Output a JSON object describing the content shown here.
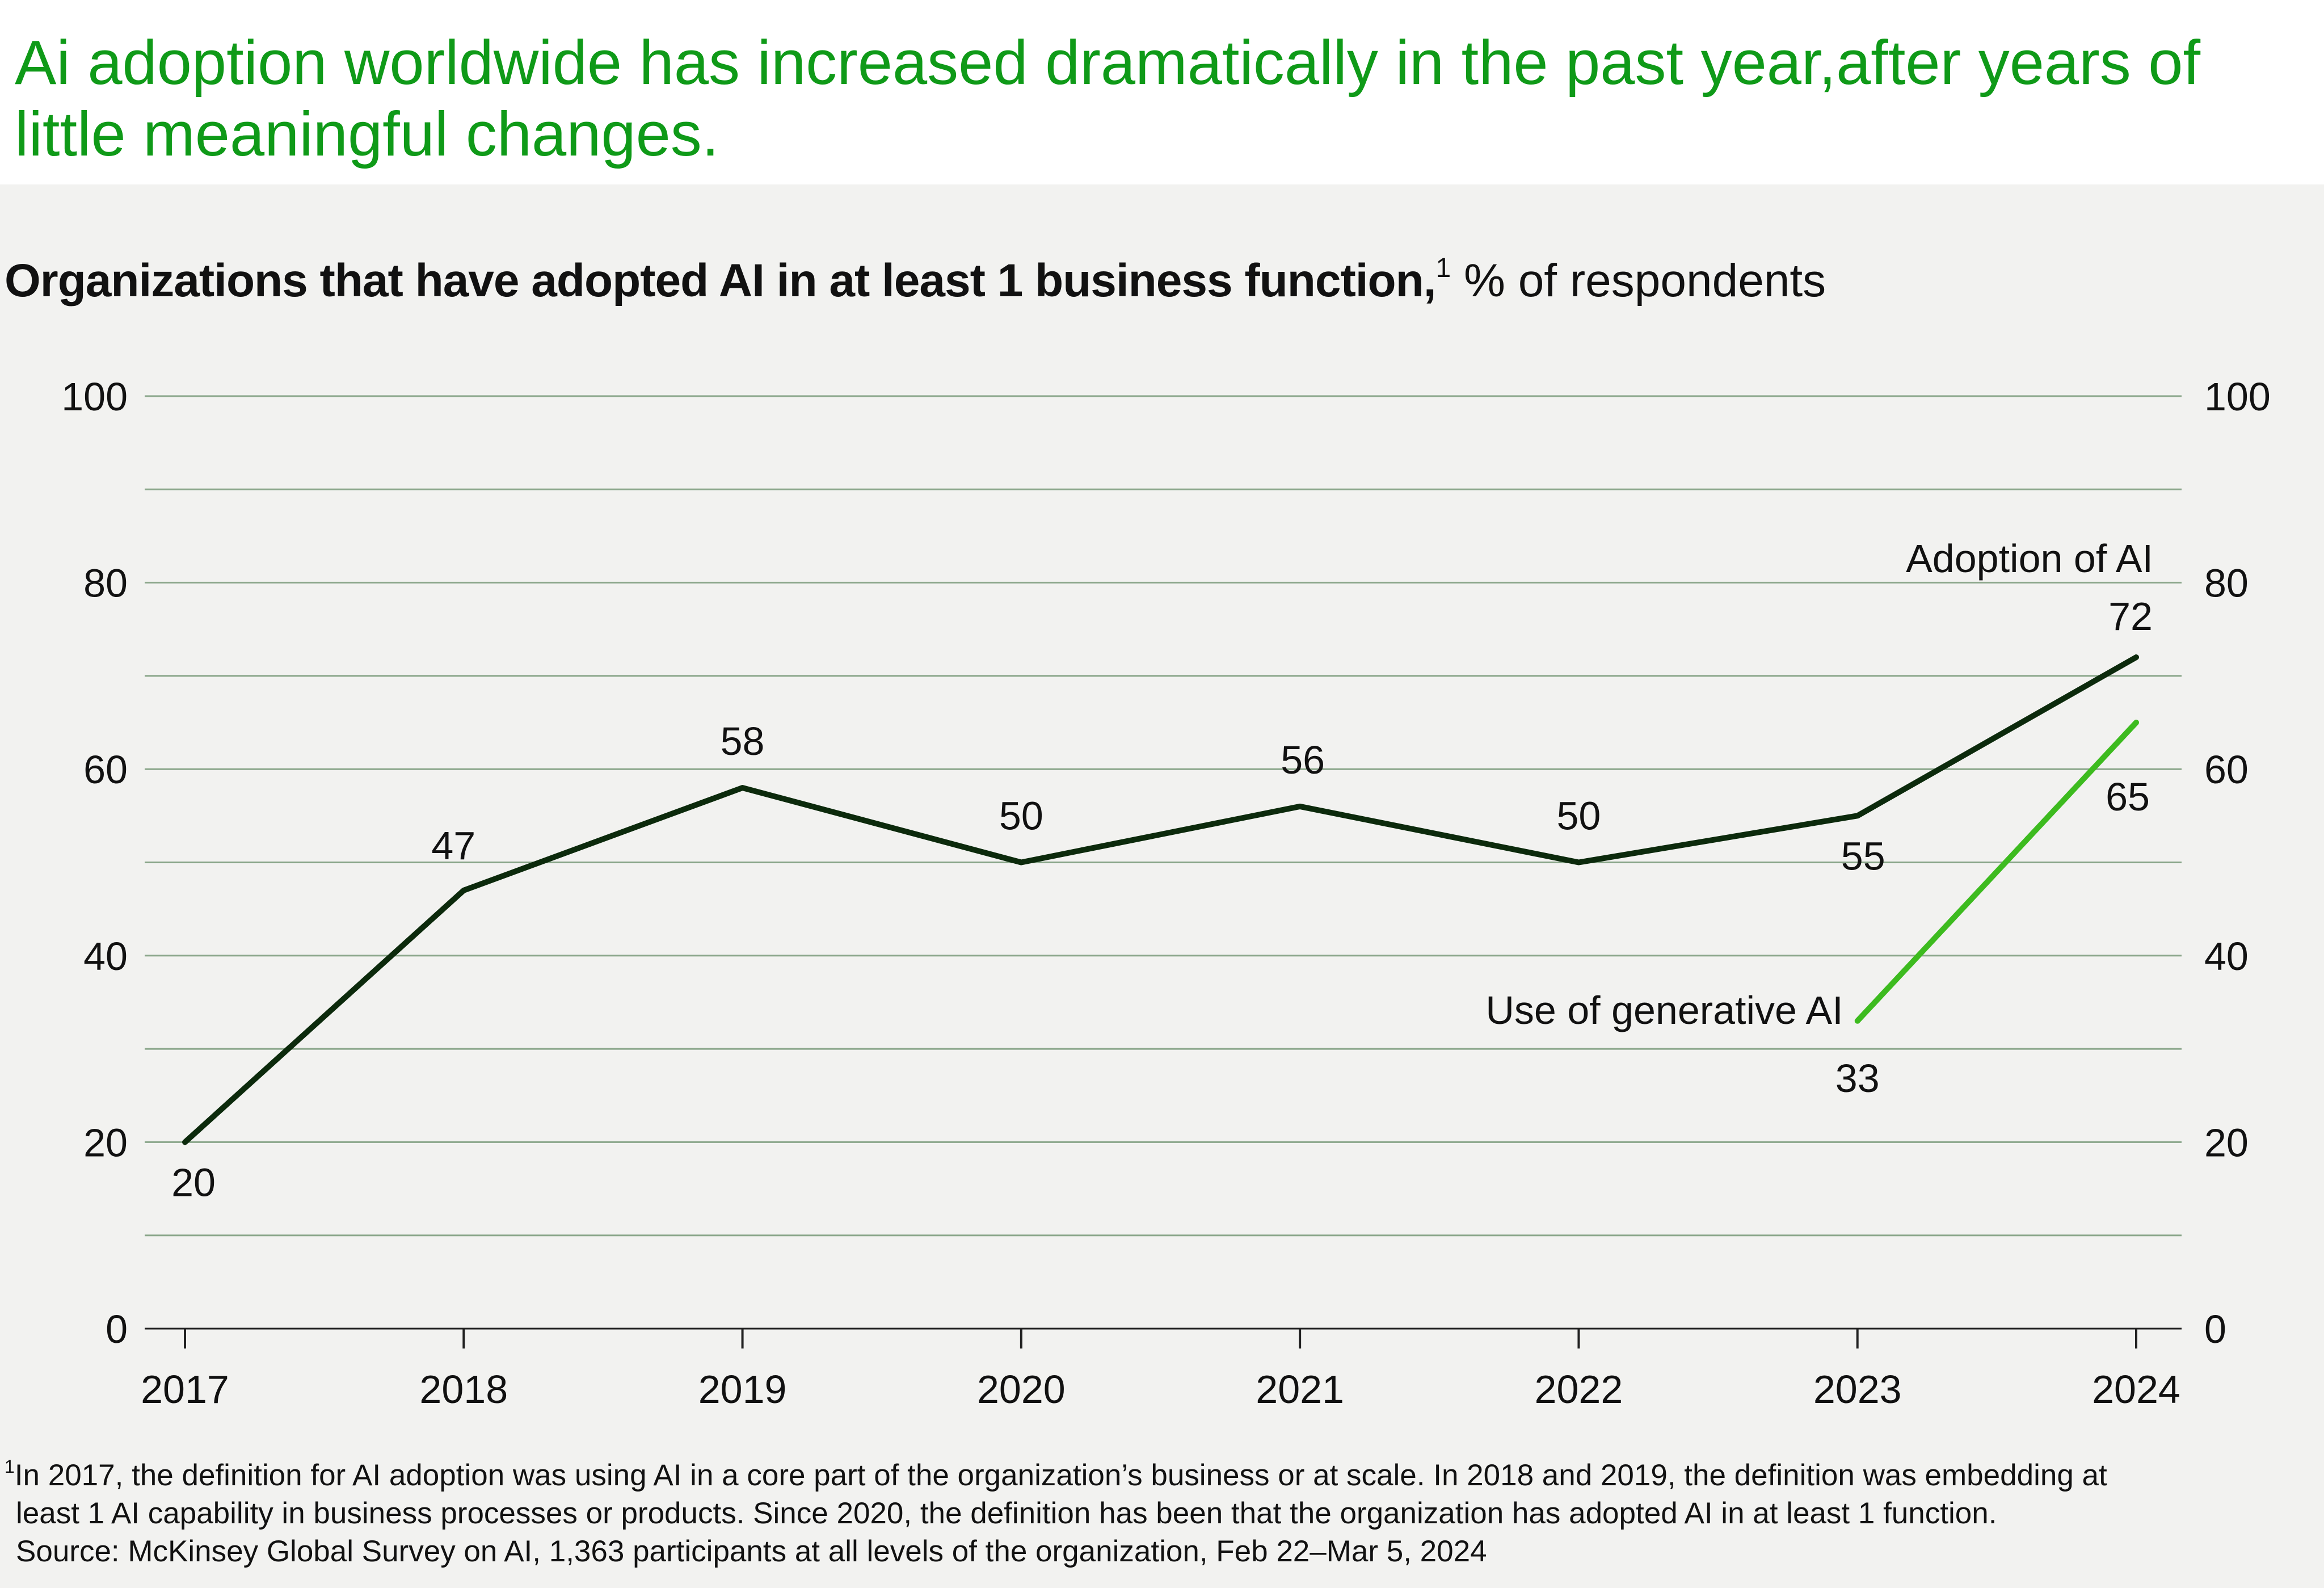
{
  "headline": "Ai adoption worldwide has increased dramatically in the past year,after years of little meaningful changes.",
  "colors": {
    "headline": "#0f9a18",
    "panel_bg": "#f2f2f0",
    "adoption_line": "#0c2a0c",
    "genai_line": "#3dbb1f",
    "gridline": "#8aa68a"
  },
  "chart_data": {
    "type": "line",
    "title": "Organizations that have adopted AI in at least 1 business function,",
    "title_sup": "1",
    "unit": "% of respondents",
    "xlabel": "",
    "ylabel": "% of respondents",
    "ylim": [
      0,
      100
    ],
    "y_ticks": [
      0,
      20,
      40,
      60,
      80,
      100
    ],
    "y_minor_gridlines": [
      10,
      30,
      50,
      70,
      90
    ],
    "categories": [
      "2017",
      "2018",
      "2019",
      "2020",
      "2021",
      "2022",
      "2023",
      "2024"
    ],
    "series": [
      {
        "name": "Adoption of AI",
        "x": [
          "2017",
          "2018",
          "2019",
          "2020",
          "2021",
          "2022",
          "2023",
          "2024"
        ],
        "values": [
          20,
          47,
          58,
          50,
          56,
          50,
          55,
          72
        ]
      },
      {
        "name": "Use of generative AI",
        "x": [
          "2023",
          "2024"
        ],
        "values": [
          33,
          65
        ]
      }
    ],
    "grid": true,
    "legend": "inline labels"
  },
  "footnotes": {
    "sup": "1",
    "line1": "In 2017, the definition for AI adoption was using AI in a core part of the organization’s business or at scale. In 2018 and 2019, the definition was embedding at",
    "line2": "least 1 AI capability in business processes or products. Since 2020, the definition has been that the organization has adopted AI in at least 1 function.",
    "source": "Source: McKinsey Global Survey on AI, 1,363 participants at all levels of the organization, Feb 22–Mar 5, 2024"
  }
}
